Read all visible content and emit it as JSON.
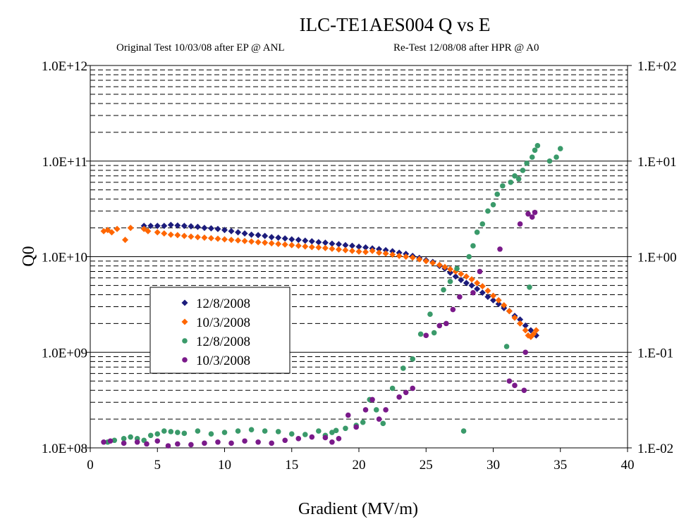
{
  "chart_data": {
    "type": "scatter",
    "title": "ILC-TE1AES004 Q vs E",
    "subtitle_left": "Original Test 10/03/08 after EP @ ANL",
    "subtitle_right": "Re-Test 12/08/08 after HPR @ A0",
    "xlabel": "Gradient (MV/m)",
    "ylabel": "Q0",
    "xlim": [
      0,
      40
    ],
    "x_ticks": [
      0,
      5,
      10,
      15,
      20,
      25,
      30,
      35,
      40
    ],
    "y_scale": "log",
    "ylim": [
      100000000,
      1000000000000
    ],
    "y_tick_values": [
      100000000,
      1000000000,
      10000000000,
      100000000000,
      1000000000000
    ],
    "y_tick_labels": [
      "1.0E+08",
      "1.0E+09",
      "1.0E+10",
      "1.0E+11",
      "1.0E+12"
    ],
    "y2_scale": "log",
    "y2lim": [
      0.01,
      100
    ],
    "y2_tick_values": [
      0.01,
      0.1,
      1,
      10,
      100
    ],
    "y2_tick_labels": [
      "1.E-02",
      "1.E-01",
      "1.E+00",
      "1.E+01",
      "1.E+02"
    ],
    "grid": "horizontal dashed minor lines, solid decade lines",
    "legend_placement": "left-middle",
    "series": [
      {
        "name": "12/8/2008",
        "axis": "left",
        "marker": "diamond",
        "color": "#1c1c7c",
        "points": [
          [
            4.0,
            21000000000.0
          ],
          [
            4.5,
            21000000000.0
          ],
          [
            5.0,
            21000000000.0
          ],
          [
            5.5,
            21000000000.0
          ],
          [
            6.0,
            21500000000.0
          ],
          [
            6.5,
            21200000000.0
          ],
          [
            7.0,
            21000000000.0
          ],
          [
            7.5,
            20800000000.0
          ],
          [
            8.0,
            20500000000.0
          ],
          [
            8.5,
            20000000000.0
          ],
          [
            9.0,
            19800000000.0
          ],
          [
            9.5,
            19500000000.0
          ],
          [
            10.0,
            19000000000.0
          ],
          [
            10.5,
            18500000000.0
          ],
          [
            11.0,
            18000000000.0
          ],
          [
            11.5,
            17500000000.0
          ],
          [
            12.0,
            17000000000.0
          ],
          [
            12.5,
            16800000000.0
          ],
          [
            13.0,
            16500000000.0
          ],
          [
            13.5,
            16000000000.0
          ],
          [
            14.0,
            15800000000.0
          ],
          [
            14.5,
            15500000000.0
          ],
          [
            15.0,
            15200000000.0
          ],
          [
            15.5,
            15000000000.0
          ],
          [
            16.0,
            14700000000.0
          ],
          [
            16.5,
            14500000000.0
          ],
          [
            17.0,
            14200000000.0
          ],
          [
            17.5,
            14000000000.0
          ],
          [
            18.0,
            13700000000.0
          ],
          [
            18.5,
            13500000000.0
          ],
          [
            19.0,
            13200000000.0
          ],
          [
            19.5,
            13000000000.0
          ],
          [
            20.0,
            12700000000.0
          ],
          [
            20.5,
            12500000000.0
          ],
          [
            21.0,
            12200000000.0
          ],
          [
            21.5,
            12000000000.0
          ],
          [
            22.0,
            11700000000.0
          ],
          [
            22.5,
            11400000000.0
          ],
          [
            23.0,
            11000000000.0
          ],
          [
            23.5,
            10700000000.0
          ],
          [
            24.0,
            10200000000.0
          ],
          [
            24.5,
            9700000000.0
          ],
          [
            25.0,
            9200000000.0
          ],
          [
            25.5,
            8800000000.0
          ],
          [
            26.0,
            8000000000.0
          ],
          [
            26.4,
            7500000000.0
          ],
          [
            26.8,
            6800000000.0
          ],
          [
            27.2,
            6200000000.0
          ],
          [
            27.6,
            5700000000.0
          ],
          [
            28.0,
            5300000000.0
          ],
          [
            28.4,
            5000000000.0
          ],
          [
            28.8,
            4600000000.0
          ],
          [
            29.2,
            4200000000.0
          ],
          [
            29.6,
            3800000000.0
          ],
          [
            30.0,
            3500000000.0
          ],
          [
            30.4,
            3200000000.0
          ],
          [
            30.8,
            2900000000.0
          ],
          [
            31.2,
            2700000000.0
          ],
          [
            31.6,
            2400000000.0
          ],
          [
            32.0,
            2200000000.0
          ],
          [
            32.4,
            1900000000.0
          ],
          [
            32.8,
            1700000000.0
          ],
          [
            33.2,
            1500000000.0
          ]
        ]
      },
      {
        "name": "10/3/2008",
        "axis": "left",
        "marker": "diamond",
        "color": "#ff6600",
        "points": [
          [
            1.0,
            18500000000.0
          ],
          [
            1.3,
            19000000000.0
          ],
          [
            1.6,
            18000000000.0
          ],
          [
            2.0,
            19500000000.0
          ],
          [
            2.6,
            15000000000.0
          ],
          [
            3.0,
            20000000000.0
          ],
          [
            4.0,
            19500000000.0
          ],
          [
            4.3,
            18500000000.0
          ],
          [
            5.0,
            18000000000.0
          ],
          [
            5.5,
            17500000000.0
          ],
          [
            6.0,
            17000000000.0
          ],
          [
            6.5,
            16800000000.0
          ],
          [
            7.0,
            16500000000.0
          ],
          [
            7.5,
            16200000000.0
          ],
          [
            8.0,
            16000000000.0
          ],
          [
            8.5,
            15800000000.0
          ],
          [
            9.0,
            15600000000.0
          ],
          [
            9.5,
            15400000000.0
          ],
          [
            10.0,
            15200000000.0
          ],
          [
            10.5,
            15000000000.0
          ],
          [
            11.0,
            14800000000.0
          ],
          [
            11.5,
            14600000000.0
          ],
          [
            12.0,
            14400000000.0
          ],
          [
            12.5,
            14200000000.0
          ],
          [
            13.0,
            14000000000.0
          ],
          [
            13.5,
            13800000000.0
          ],
          [
            14.0,
            13600000000.0
          ],
          [
            14.5,
            13400000000.0
          ],
          [
            15.0,
            13200000000.0
          ],
          [
            15.5,
            13000000000.0
          ],
          [
            16.0,
            12800000000.0
          ],
          [
            16.5,
            12600000000.0
          ],
          [
            17.0,
            12500000000.0
          ],
          [
            17.5,
            12300000000.0
          ],
          [
            18.0,
            12100000000.0
          ],
          [
            18.5,
            11900000000.0
          ],
          [
            19.0,
            11700000000.0
          ],
          [
            19.5,
            11500000000.0
          ],
          [
            20.0,
            11300000000.0
          ],
          [
            20.5,
            11200000000.0
          ],
          [
            21.0,
            11500000000.0
          ],
          [
            21.5,
            11000000000.0
          ],
          [
            22.0,
            10800000000.0
          ],
          [
            22.5,
            10500000000.0
          ],
          [
            23.0,
            10200000000.0
          ],
          [
            23.5,
            10000000000.0
          ],
          [
            24.0,
            9800000000.0
          ],
          [
            24.5,
            9400000000.0
          ],
          [
            25.0,
            9000000000.0
          ],
          [
            25.5,
            8600000000.0
          ],
          [
            26.0,
            8200000000.0
          ],
          [
            26.4,
            7800000000.0
          ],
          [
            26.8,
            7400000000.0
          ],
          [
            27.2,
            7000000000.0
          ],
          [
            27.6,
            6600000000.0
          ],
          [
            28.0,
            6200000000.0
          ],
          [
            28.4,
            5800000000.0
          ],
          [
            28.8,
            5300000000.0
          ],
          [
            29.2,
            4900000000.0
          ],
          [
            29.6,
            4400000000.0
          ],
          [
            30.0,
            3900000000.0
          ],
          [
            30.4,
            3500000000.0
          ],
          [
            30.8,
            3100000000.0
          ],
          [
            31.2,
            2700000000.0
          ],
          [
            31.6,
            2300000000.0
          ],
          [
            32.0,
            2000000000.0
          ],
          [
            32.4,
            1700000000.0
          ],
          [
            32.6,
            1500000000.0
          ],
          [
            32.8,
            1450000000.0
          ],
          [
            33.0,
            1550000000.0
          ],
          [
            33.2,
            1700000000.0
          ]
        ]
      },
      {
        "name": "12/8/2008",
        "axis": "right",
        "marker": "circle",
        "color": "#3a9a6a",
        "points": [
          [
            1.3,
            0.0115
          ],
          [
            1.8,
            0.012
          ],
          [
            2.5,
            0.0125
          ],
          [
            3.0,
            0.013
          ],
          [
            3.5,
            0.0125
          ],
          [
            4.0,
            0.012
          ],
          [
            4.5,
            0.0135
          ],
          [
            5.0,
            0.014
          ],
          [
            5.5,
            0.015
          ],
          [
            6.0,
            0.0148
          ],
          [
            6.5,
            0.0145
          ],
          [
            7.0,
            0.0142
          ],
          [
            8.0,
            0.015
          ],
          [
            9.0,
            0.014
          ],
          [
            10.0,
            0.0145
          ],
          [
            11.0,
            0.015
          ],
          [
            12.0,
            0.0155
          ],
          [
            13.0,
            0.015
          ],
          [
            14.0,
            0.0148
          ],
          [
            15.0,
            0.014
          ],
          [
            16.0,
            0.0138
          ],
          [
            17.0,
            0.015
          ],
          [
            17.5,
            0.0135
          ],
          [
            18.0,
            0.0145
          ],
          [
            18.3,
            0.0152
          ],
          [
            19.0,
            0.016
          ],
          [
            19.8,
            0.0172
          ],
          [
            20.3,
            0.0185
          ],
          [
            20.8,
            0.032
          ],
          [
            21.3,
            0.025
          ],
          [
            21.8,
            0.018
          ],
          [
            22.5,
            0.042
          ],
          [
            23.3,
            0.068
          ],
          [
            24.0,
            0.085
          ],
          [
            24.6,
            0.155
          ],
          [
            25.3,
            0.25
          ],
          [
            25.6,
            0.16
          ],
          [
            26.3,
            0.45
          ],
          [
            26.8,
            0.55
          ],
          [
            27.3,
            0.75
          ],
          [
            27.8,
            0.015
          ],
          [
            28.2,
            1.0
          ],
          [
            28.5,
            1.3
          ],
          [
            28.8,
            1.8
          ],
          [
            29.2,
            2.2
          ],
          [
            29.6,
            3.0
          ],
          [
            30.0,
            3.5
          ],
          [
            30.3,
            4.5
          ],
          [
            30.7,
            5.5
          ],
          [
            31.0,
            0.115
          ],
          [
            31.3,
            6.0
          ],
          [
            31.6,
            7.0
          ],
          [
            31.9,
            6.5
          ],
          [
            32.2,
            8.0
          ],
          [
            32.5,
            9.5
          ],
          [
            32.7,
            0.48
          ],
          [
            32.9,
            11.0
          ],
          [
            33.1,
            13.0
          ],
          [
            33.3,
            14.5
          ],
          [
            34.2,
            10.0
          ],
          [
            34.7,
            11.0
          ],
          [
            35.0,
            13.5
          ]
        ]
      },
      {
        "name": "10/3/2008",
        "axis": "right",
        "marker": "circle",
        "color": "#7a1a8a",
        "points": [
          [
            1.0,
            0.0115
          ],
          [
            1.5,
            0.0118
          ],
          [
            2.5,
            0.0112
          ],
          [
            3.5,
            0.0115
          ],
          [
            4.2,
            0.011
          ],
          [
            5.0,
            0.0118
          ],
          [
            5.8,
            0.0105
          ],
          [
            6.5,
            0.011
          ],
          [
            7.5,
            0.0108
          ],
          [
            8.5,
            0.0112
          ],
          [
            9.5,
            0.0115
          ],
          [
            10.5,
            0.0112
          ],
          [
            11.5,
            0.0118
          ],
          [
            12.5,
            0.0115
          ],
          [
            13.5,
            0.0112
          ],
          [
            14.5,
            0.012
          ],
          [
            15.5,
            0.0125
          ],
          [
            16.5,
            0.013
          ],
          [
            17.5,
            0.0128
          ],
          [
            18.0,
            0.0115
          ],
          [
            18.5,
            0.0125
          ],
          [
            19.2,
            0.022
          ],
          [
            19.8,
            0.0165
          ],
          [
            20.5,
            0.025
          ],
          [
            21.0,
            0.032
          ],
          [
            21.5,
            0.02
          ],
          [
            22.0,
            0.025
          ],
          [
            23.0,
            0.034
          ],
          [
            23.5,
            0.038
          ],
          [
            24.0,
            0.042
          ],
          [
            25.0,
            0.15
          ],
          [
            26.0,
            0.19
          ],
          [
            26.5,
            0.2
          ],
          [
            27.0,
            0.28
          ],
          [
            27.5,
            0.38
          ],
          [
            28.5,
            0.42
          ],
          [
            29.0,
            0.7
          ],
          [
            30.5,
            1.2
          ],
          [
            31.2,
            0.05
          ],
          [
            31.6,
            0.045
          ],
          [
            32.0,
            2.2
          ],
          [
            32.4,
            0.1
          ],
          [
            32.6,
            2.8
          ],
          [
            32.9,
            2.6
          ],
          [
            33.1,
            2.9
          ],
          [
            32.3,
            0.04
          ]
        ]
      }
    ]
  }
}
